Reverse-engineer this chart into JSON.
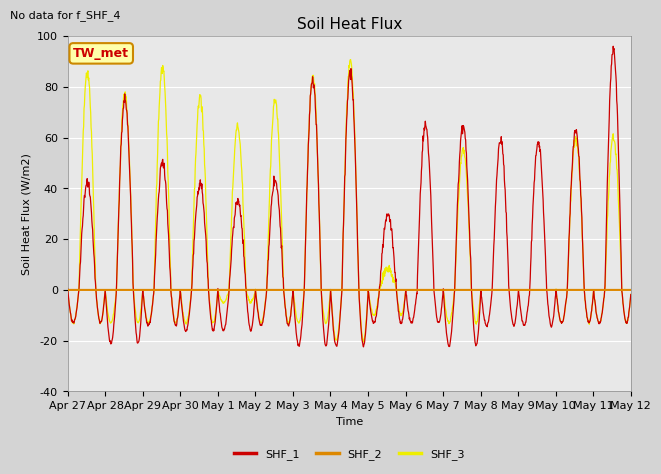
{
  "title": "Soil Heat Flux",
  "ylabel": "Soil Heat Flux (W/m2)",
  "xlabel": "Time",
  "note": "No data for f_SHF_4",
  "legend_box_label": "TW_met",
  "ylim": [
    -40,
    100
  ],
  "series_labels": [
    "SHF_1",
    "SHF_2",
    "SHF_3"
  ],
  "shf1_color": "#cc0000",
  "shf2_color": "#dd8800",
  "shf3_color": "#eeee00",
  "xtick_labels": [
    "Apr 27",
    "Apr 28",
    "Apr 29",
    "Apr 30",
    "May 1",
    "May 2",
    "May 3",
    "May 4",
    "May 5",
    "May 6",
    "May 7",
    "May 8",
    "May 9",
    "May 10",
    "May 11",
    "May 12"
  ],
  "ytick_vals": [
    -40,
    -20,
    0,
    20,
    40,
    60,
    80,
    100
  ],
  "fig_bg": "#d4d4d4",
  "plot_bg": "#e8e8e8",
  "grid_color": "#ffffff",
  "n_days": 15,
  "n_per_day": 96,
  "day_peaks_1": [
    42,
    75,
    50,
    42,
    35,
    43,
    83,
    86,
    30,
    65,
    65,
    59,
    58,
    63,
    95
  ],
  "day_peaks_3": [
    85,
    77,
    88,
    76,
    65,
    75,
    84,
    90,
    8,
    0,
    55,
    0,
    0,
    60,
    60
  ],
  "day_troughs_1": [
    -13,
    -21,
    -14,
    -16,
    -16,
    -14,
    -22,
    -22,
    -13,
    -13,
    -22,
    -14,
    -14,
    -13,
    -13
  ],
  "day_troughs_3": [
    -13,
    -13,
    -13,
    -13,
    -5,
    -13,
    -13,
    -20,
    -10,
    -10,
    -13,
    -10,
    -10,
    -13,
    -13
  ],
  "title_fontsize": 11,
  "axis_label_fontsize": 8,
  "tick_fontsize": 8,
  "legend_fontsize": 8
}
